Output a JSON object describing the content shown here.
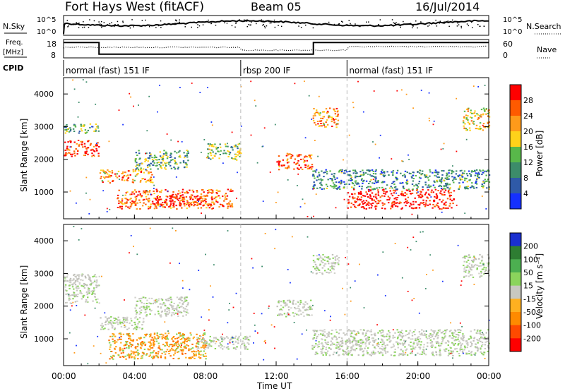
{
  "header": {
    "title": "Fort Hays West (fitACF)",
    "beam": "Beam 05",
    "date": "16/Jul/2014"
  },
  "top_panels": {
    "nsky_label": "N.Sky",
    "nsky_ticks": [
      "10^5",
      "10^0"
    ],
    "nsearch_label": "N.Search",
    "nsearch_ticks": [
      "10^5",
      "10^0"
    ],
    "freq_label": "Freq.",
    "freq_unit": "[MHz]",
    "freq_ticks": [
      "18",
      "8"
    ],
    "nave_label": "Nave",
    "nave_ticks": [
      "60",
      "0"
    ],
    "cpid_label": "CPID",
    "cpid_segments": [
      {
        "label": "normal (fast) 151 IF",
        "start_hour": 0,
        "end_hour": 10
      },
      {
        "label": "rbsp 200 IF",
        "start_hour": 10,
        "end_hour": 16
      },
      {
        "label": "normal (fast) 151 IF",
        "start_hour": 16,
        "end_hour": 24
      }
    ],
    "freq_steps": [
      {
        "start_hour": 0,
        "end_hour": 2,
        "level": 0.9
      },
      {
        "start_hour": 2,
        "end_hour": 14.1,
        "level": 0.15
      },
      {
        "start_hour": 14.1,
        "end_hour": 24,
        "level": 0.9
      }
    ]
  },
  "chart_data": [
    {
      "type": "heatmap",
      "title": "",
      "ylabel": "Slant Range [km]",
      "xlabel": "",
      "ylim": [
        180,
        4500
      ],
      "yticks": [
        "4000",
        "3000",
        "2000",
        "1000"
      ],
      "ytick_values": [
        4000,
        3000,
        2000,
        1000
      ],
      "colorbar_label": "Power [dB]",
      "colorbar_ticks": [
        "28",
        "24",
        "20",
        "16",
        "12",
        "8",
        "4"
      ],
      "colorbar_colors": [
        "#ff0000",
        "#ff5a00",
        "#ff9a1a",
        "#ffd21a",
        "#58b84a",
        "#3c8c6a",
        "#2f5aa8",
        "#1530ff"
      ],
      "clusters": [
        {
          "x0": 0.0,
          "x1": 2.0,
          "y0": 2800,
          "y1": 3100,
          "v": 0.6
        },
        {
          "x0": 0.0,
          "x1": 2.0,
          "y0": 2100,
          "y1": 2600,
          "v": 0.1
        },
        {
          "x0": 2.0,
          "x1": 5.0,
          "y0": 1300,
          "y1": 1700,
          "v": 0.3
        },
        {
          "x0": 3.0,
          "x1": 9.5,
          "y0": 500,
          "y1": 1100,
          "v": 0.2
        },
        {
          "x0": 5.0,
          "x1": 8.0,
          "y0": 600,
          "y1": 900,
          "v": 0.05
        },
        {
          "x0": 4.0,
          "x1": 7.0,
          "y0": 1700,
          "y1": 2300,
          "v": 0.6
        },
        {
          "x0": 8.0,
          "x1": 10.0,
          "y0": 2000,
          "y1": 2500,
          "v": 0.55
        },
        {
          "x0": 12.0,
          "x1": 14.0,
          "y0": 1700,
          "y1": 2200,
          "v": 0.2
        },
        {
          "x0": 14.0,
          "x1": 15.5,
          "y0": 3000,
          "y1": 3600,
          "v": 0.3
        },
        {
          "x0": 16.0,
          "x1": 22.0,
          "y0": 500,
          "y1": 1100,
          "v": 0.05
        },
        {
          "x0": 14.0,
          "x1": 24.0,
          "y0": 1100,
          "y1": 1700,
          "v": 0.7
        },
        {
          "x0": 22.5,
          "x1": 24.0,
          "y0": 2900,
          "y1": 3600,
          "v": 0.4
        }
      ]
    },
    {
      "type": "heatmap",
      "title": "",
      "ylabel": "Slant Range [km]",
      "xlabel": "Time UT",
      "ylim": [
        180,
        4500
      ],
      "yticks": [
        "4000",
        "3000",
        "2000",
        "1000"
      ],
      "ytick_values": [
        4000,
        3000,
        2000,
        1000
      ],
      "xticks": [
        "00:00",
        "04:00",
        "08:00",
        "12:00",
        "16:00",
        "20:00",
        "00:00"
      ],
      "xtick_hours": [
        0,
        4,
        8,
        12,
        16,
        20,
        24
      ],
      "colorbar_label": "Velocity [m s⁻¹]",
      "colorbar_ticks": [
        "200",
        "100",
        "50",
        "15",
        "-15",
        "-50",
        "-100",
        "-200"
      ],
      "colorbar_colors": [
        "#1a2fd0",
        "#2e7d32",
        "#4caf50",
        "#8bd45c",
        "#c8c8c0",
        "#ffb020",
        "#ff8a00",
        "#ff4a00",
        "#ff0000"
      ],
      "clusters": [
        {
          "x0": 0.0,
          "x1": 2.0,
          "y0": 2100,
          "y1": 3000,
          "v": "gray"
        },
        {
          "x0": 2.0,
          "x1": 4.5,
          "y0": 1300,
          "y1": 1700,
          "v": "gray"
        },
        {
          "x0": 2.5,
          "x1": 8.0,
          "y0": 400,
          "y1": 1200,
          "v": "orange"
        },
        {
          "x0": 7.5,
          "x1": 10.5,
          "y0": 700,
          "y1": 1100,
          "v": "gray"
        },
        {
          "x0": 4.0,
          "x1": 7.0,
          "y0": 1700,
          "y1": 2300,
          "v": "gray"
        },
        {
          "x0": 12.0,
          "x1": 14.0,
          "y0": 1700,
          "y1": 2200,
          "v": "gray"
        },
        {
          "x0": 14.0,
          "x1": 15.5,
          "y0": 3000,
          "y1": 3600,
          "v": "gray"
        },
        {
          "x0": 14.0,
          "x1": 24.0,
          "y0": 500,
          "y1": 1300,
          "v": "gray"
        },
        {
          "x0": 22.5,
          "x1": 24.0,
          "y0": 2900,
          "y1": 3600,
          "v": "gray"
        }
      ]
    }
  ]
}
